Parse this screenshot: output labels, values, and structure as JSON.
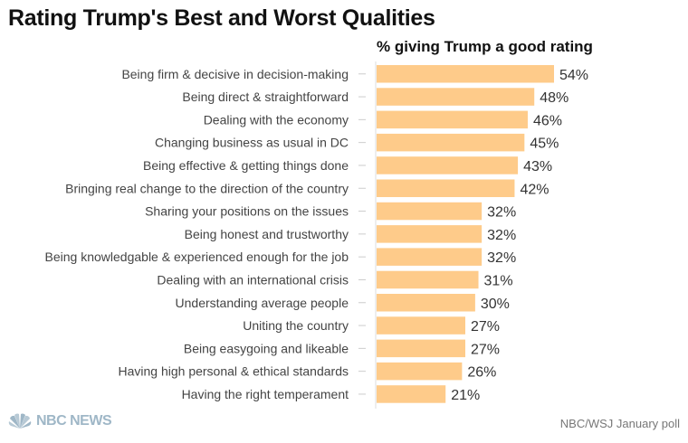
{
  "chart_data": {
    "type": "bar",
    "orientation": "horizontal",
    "title": "Rating Trump's Best and Worst Qualities",
    "series_header": "% giving Trump a good rating",
    "categories": [
      "Being firm & decisive in decision-making",
      "Being direct & straightforward",
      "Dealing with the economy",
      "Changing business as usual in DC",
      "Being effective & getting things done",
      "Bringing real change to the direction of the country",
      "Sharing your positions on the issues",
      "Being honest and trustworthy",
      "Being knowledgable & experienced enough for the job",
      "Dealing with an international crisis",
      "Understanding average people",
      "Uniting the country",
      "Being easygoing and likeable",
      "Having high personal & ethical standards",
      "Having the right temperament"
    ],
    "values": [
      54,
      48,
      46,
      45,
      43,
      42,
      32,
      32,
      32,
      31,
      30,
      27,
      27,
      26,
      21
    ],
    "value_suffix": "%",
    "bar_color": "#FECB8A",
    "grid": false,
    "legend": "none"
  },
  "footer": {
    "logo_text": "NBC NEWS",
    "source": "NBC/WSJ January poll"
  }
}
